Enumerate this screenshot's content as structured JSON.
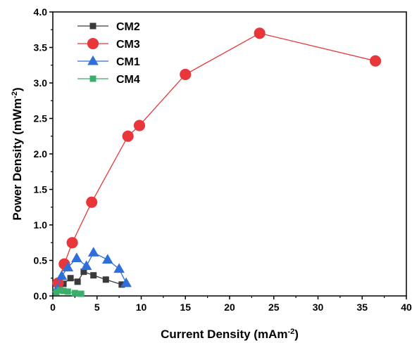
{
  "chart_data": {
    "type": "line",
    "xlabel": "Current Density (mAm",
    "xlabel_sup": "-2",
    "xlabel_end": ")",
    "ylabel": "Power Density (mWm",
    "ylabel_sup": "-2",
    "ylabel_end": ")",
    "xlim": [
      0,
      40
    ],
    "ylim": [
      0,
      4.0
    ],
    "xticks": [
      "0",
      "5",
      "10",
      "15",
      "20",
      "25",
      "30",
      "35",
      "40"
    ],
    "yticks": [
      "0.0",
      "0.5",
      "1.0",
      "1.5",
      "2.0",
      "2.5",
      "3.0",
      "3.5",
      "4.0"
    ],
    "grid": false,
    "legend_position": "top-left",
    "series": [
      {
        "name": "CM2",
        "color": "#3a3a3a",
        "marker": "square",
        "x": [
          0.6,
          1.2,
          2.0,
          2.8,
          3.5,
          4.6,
          6.0,
          7.8
        ],
        "y": [
          0.1,
          0.17,
          0.25,
          0.2,
          0.34,
          0.29,
          0.23,
          0.16
        ]
      },
      {
        "name": "CM3",
        "color": "#e8363a",
        "marker": "circle",
        "x": [
          0.6,
          1.3,
          2.2,
          4.4,
          8.5,
          9.8,
          15.0,
          23.4,
          36.5
        ],
        "y": [
          0.18,
          0.45,
          0.75,
          1.32,
          2.25,
          2.4,
          3.12,
          3.7,
          3.31
        ]
      },
      {
        "name": "CM1",
        "color": "#2f6fd9",
        "marker": "triangle",
        "x": [
          0.5,
          1.0,
          1.7,
          2.7,
          3.8,
          4.6,
          6.2,
          7.5,
          8.3
        ],
        "y": [
          0.1,
          0.28,
          0.4,
          0.53,
          0.42,
          0.61,
          0.51,
          0.38,
          0.18
        ]
      },
      {
        "name": "CM4",
        "color": "#3cae6c",
        "marker": "square",
        "x": [
          0.4,
          0.8,
          1.2,
          1.7,
          2.5,
          3.2
        ],
        "y": [
          0.05,
          0.08,
          0.07,
          0.06,
          0.04,
          0.03
        ]
      }
    ]
  }
}
